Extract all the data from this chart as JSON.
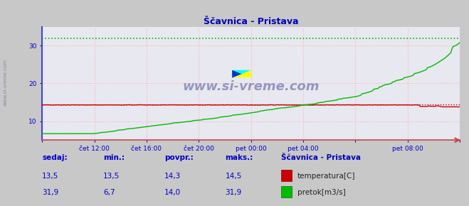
{
  "title": "Ščavnica - Pristava",
  "bg_color": "#c8c8c8",
  "plot_bg_color": "#e8e8f0",
  "grid_color": "#ffb0b0",
  "x_tick_labels": [
    "čet 12:00",
    "čet 16:00",
    "čet 20:00",
    "pet 00:00",
    "pet 04:00",
    "pet 08:00"
  ],
  "ylim": [
    5,
    35
  ],
  "y_ticks": [
    10,
    20,
    30
  ],
  "temp_color": "#cc0000",
  "flow_color": "#00bb00",
  "temp_max": 14.5,
  "flow_max": 31.9,
  "watermark": "www.si-vreme.com",
  "legend_title": "Ščavnica - Pristava",
  "legend_temp": "temperatura[C]",
  "legend_flow": "pretok[m3/s]",
  "label_sedaj": "sedaj:",
  "label_min": "min.:",
  "label_povpr": "povpr.:",
  "label_maks": "maks.:",
  "val_temp_sedaj": "13,5",
  "val_temp_min": "13,5",
  "val_temp_povpr": "14,3",
  "val_temp_maks": "14,5",
  "val_flow_sedaj": "31,9",
  "val_flow_min": "6,7",
  "val_flow_povpr": "14,0",
  "val_flow_maks": "31,9",
  "text_color": "#0000cc",
  "title_color": "#0000bb",
  "left_spine_color": "#4444cc",
  "bottom_spine_color": "#cc4444",
  "watermark_color": "#8888bb",
  "side_label_color": "#8888aa"
}
